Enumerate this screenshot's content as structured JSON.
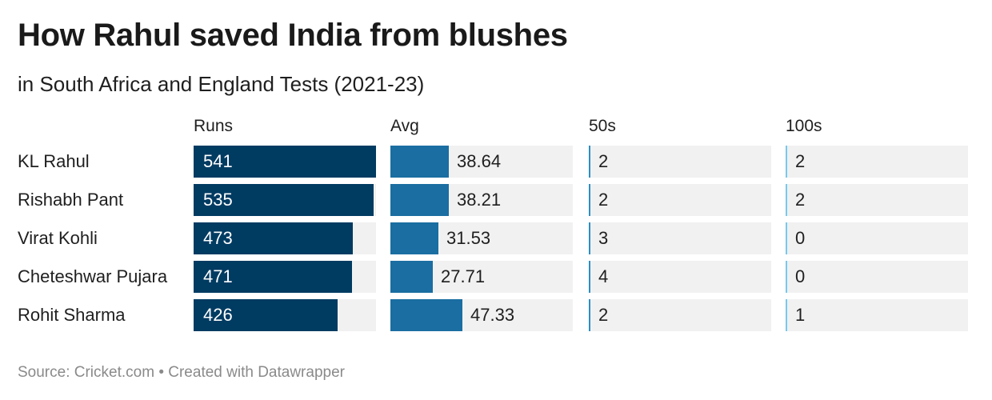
{
  "title": "How Rahul saved India from blushes",
  "subtitle": "in South Africa and England Tests (2021-23)",
  "source": "Source: Cricket.com • Created with Datawrapper",
  "colors": {
    "runs_bar": "#003b62",
    "avg_bar": "#1a6ea1",
    "fifties_bar": "#2b8fc6",
    "hundreds_bar": "#79c8ec",
    "cell_background": "#f1f1f1"
  },
  "chart_data": {
    "type": "table",
    "columns": [
      "Runs",
      "Avg",
      "50s",
      "100s"
    ],
    "column_max": [
      541,
      120,
      120,
      120
    ],
    "rows": [
      {
        "player": "KL Rahul",
        "runs": 541,
        "avg": 38.64,
        "fifties": 2,
        "hundreds": 2
      },
      {
        "player": "Rishabh Pant",
        "runs": 535,
        "avg": 38.21,
        "fifties": 2,
        "hundreds": 2
      },
      {
        "player": "Virat Kohli",
        "runs": 473,
        "avg": 31.53,
        "fifties": 3,
        "hundreds": 0
      },
      {
        "player": "Cheteshwar Pujara",
        "runs": 471,
        "avg": 27.71,
        "fifties": 4,
        "hundreds": 0
      },
      {
        "player": "Rohit Sharma",
        "runs": 426,
        "avg": 47.33,
        "fifties": 2,
        "hundreds": 1
      }
    ]
  }
}
